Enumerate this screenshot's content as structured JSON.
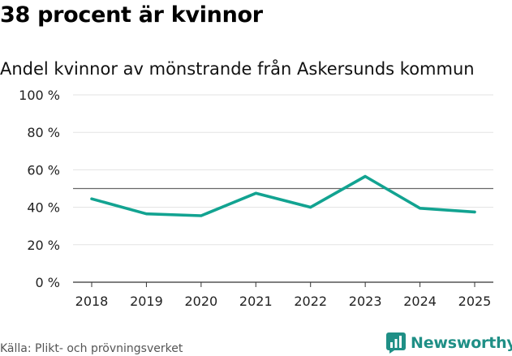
{
  "header": {
    "title": "38 procent är kvinnor",
    "subtitle": "Andel kvinnor av mönstrande från Askersunds kommun"
  },
  "footer": {
    "source": "Källa: Plikt- och prövningsverket",
    "brand": "Newsworthy",
    "brand_icon": "bar-chart-logo-icon"
  },
  "colors": {
    "line": "#12a391",
    "reference": "#666666",
    "grid": "#e3e3e3",
    "brand": "#1f8f86"
  },
  "chart_data": {
    "type": "line",
    "title": "Andel kvinnor av mönstrande från Askersunds kommun",
    "x": [
      "2018",
      "2019",
      "2020",
      "2021",
      "2022",
      "2023",
      "2024",
      "2025"
    ],
    "series": [
      {
        "values": [
          44.5,
          36.5,
          35.5,
          47.5,
          40,
          56.5,
          39.5,
          37.5
        ]
      }
    ],
    "reference_line": 50,
    "ylim": [
      0,
      100
    ],
    "yticks": [
      0,
      20,
      40,
      60,
      80,
      100
    ],
    "ytick_labels": [
      "0 %",
      "20 %",
      "40 %",
      "60 %",
      "80 %",
      "100 %"
    ],
    "grid": true,
    "legend": "none"
  }
}
